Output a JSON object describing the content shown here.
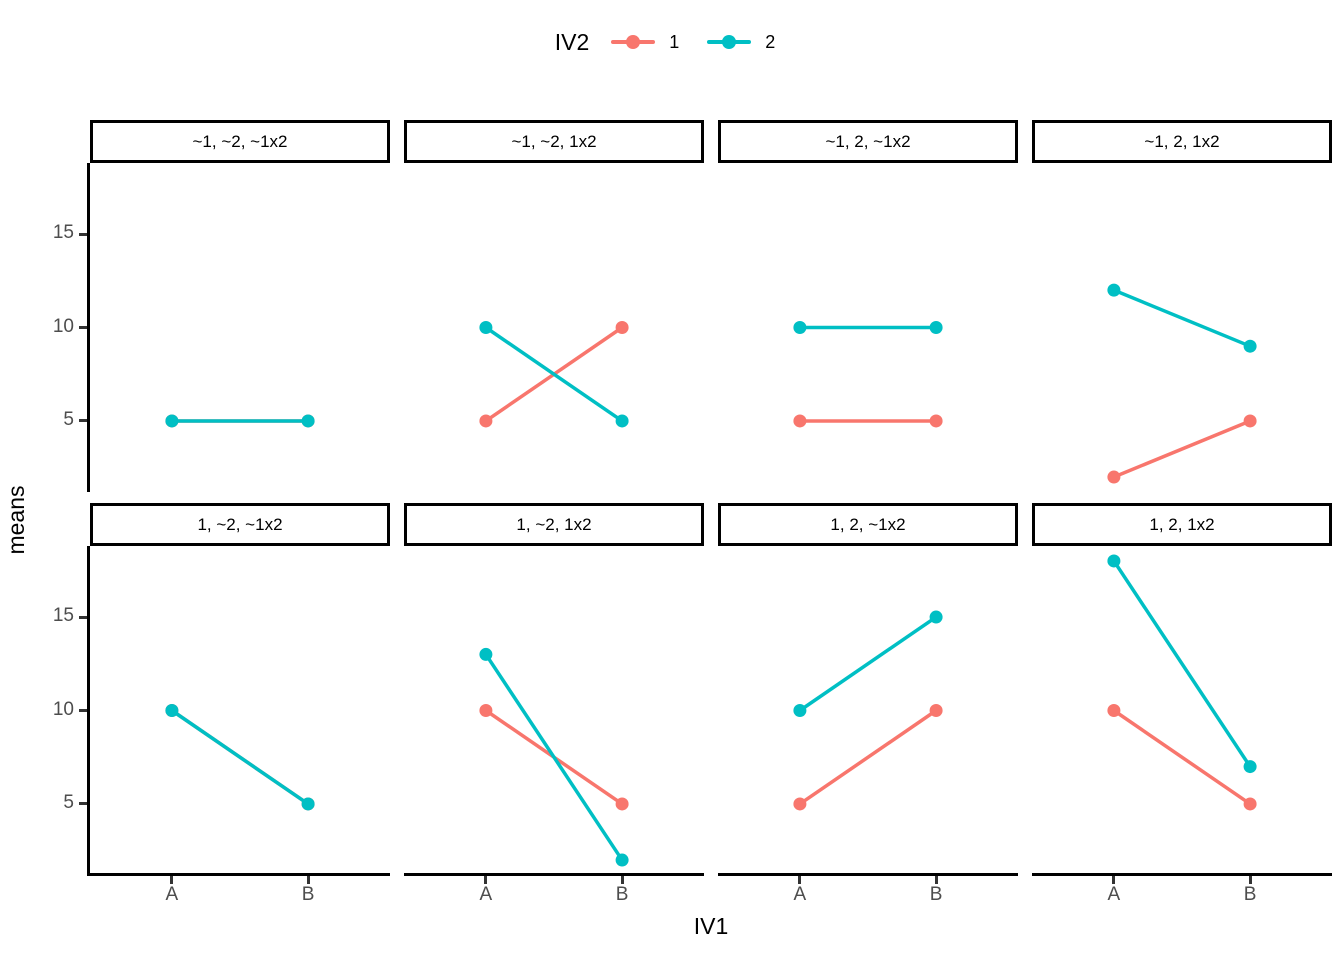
{
  "legend": {
    "title": "IV2",
    "items": [
      {
        "label": "1",
        "color": "#F8766D"
      },
      {
        "label": "2",
        "color": "#00BFC4"
      }
    ]
  },
  "axes": {
    "x_title": "IV1",
    "y_title": "means",
    "x_tick_labels": [
      "A",
      "B"
    ],
    "y_tick_labels": [
      "5",
      "10",
      "15"
    ]
  },
  "chart_data": {
    "type": "line",
    "description": "2x4 faceted interaction plot of cell means for a 2x2 design (IV1 x IV2)",
    "x_categories": [
      "A",
      "B"
    ],
    "xlabel": "IV1",
    "ylabel": "means",
    "y_ticks": [
      5,
      10,
      15
    ],
    "ylim": [
      1.2,
      18.8
    ],
    "legend_title": "IV2",
    "legend_position": "top",
    "grid": "off",
    "series": [
      {
        "name": "1",
        "color": "#F8766D"
      },
      {
        "name": "2",
        "color": "#00BFC4"
      }
    ],
    "panels": [
      {
        "title": "~1, ~2, ~1x2",
        "series_values": [
          [
            5,
            5
          ],
          [
            5,
            5
          ]
        ]
      },
      {
        "title": "~1, ~2, 1x2",
        "series_values": [
          [
            5,
            10
          ],
          [
            10,
            5
          ]
        ]
      },
      {
        "title": "~1, 2, ~1x2",
        "series_values": [
          [
            5,
            5
          ],
          [
            10,
            10
          ]
        ]
      },
      {
        "title": "~1, 2, 1x2",
        "series_values": [
          [
            2,
            5
          ],
          [
            12,
            9
          ]
        ]
      },
      {
        "title": "1, ~2, ~1x2",
        "series_values": [
          [
            10,
            5
          ],
          [
            10,
            5
          ]
        ]
      },
      {
        "title": "1, ~2, 1x2",
        "series_values": [
          [
            10,
            5
          ],
          [
            13,
            2
          ]
        ]
      },
      {
        "title": "1, 2, ~1x2",
        "series_values": [
          [
            5,
            10
          ],
          [
            10,
            15
          ]
        ]
      },
      {
        "title": "1, 2, 1x2",
        "series_values": [
          [
            10,
            5
          ],
          [
            18,
            7
          ]
        ]
      }
    ]
  }
}
